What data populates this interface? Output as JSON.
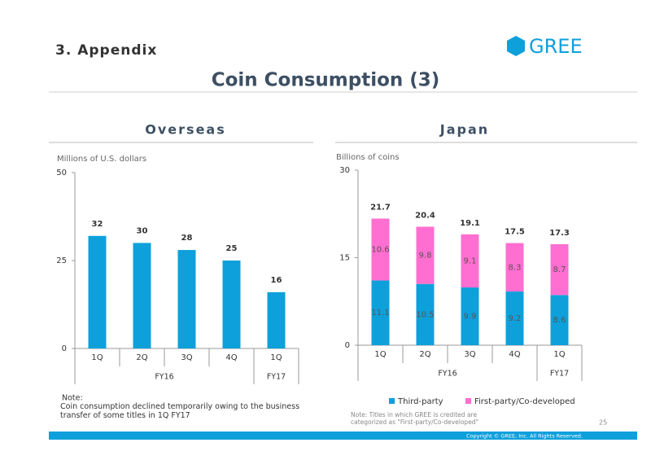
{
  "header": {
    "section": "3. Appendix",
    "logo": "GREE",
    "title": "Coin Consumption (3)"
  },
  "chart_data": [
    {
      "type": "bar",
      "title": "Overseas",
      "ylabel": "Millions of U.S. dollars",
      "color": "#0ea0db",
      "groups": [
        {
          "label": "FY16",
          "categories": [
            "1Q",
            "2Q",
            "3Q",
            "4Q"
          ]
        },
        {
          "label": "FY17",
          "categories": [
            "1Q"
          ]
        }
      ],
      "values": [
        32,
        30,
        28,
        25,
        16
      ],
      "ylim": [
        0,
        50
      ],
      "yticks": [
        0,
        25,
        50
      ],
      "note": {
        "heading": "Note:",
        "text": "Coin consumption declined temporarily owing to the business transfer of some titles in 1Q FY17"
      }
    },
    {
      "type": "stacked_bar",
      "title": "Japan",
      "ylabel": "Billions of coins",
      "groups": [
        {
          "label": "FY16",
          "categories": [
            "1Q",
            "2Q",
            "3Q",
            "4Q"
          ]
        },
        {
          "label": "FY17",
          "categories": [
            "1Q"
          ]
        }
      ],
      "series": [
        {
          "name": "Third-party",
          "color": "#0ea0db",
          "values": [
            11.1,
            10.5,
            9.9,
            9.2,
            8.6
          ]
        },
        {
          "name": "First-party/Co-developed",
          "color": "#ff6ed0",
          "values": [
            10.6,
            9.8,
            9.1,
            8.3,
            8.7
          ]
        }
      ],
      "totals": [
        21.7,
        20.4,
        19.1,
        17.5,
        17.3
      ],
      "ylim": [
        0,
        30
      ],
      "yticks": [
        0,
        15,
        30
      ],
      "legend": "bottom",
      "note": {
        "text": "Note: Titles in which GREE is credited are categorized as \"First-party/Co-developed\""
      }
    }
  ],
  "footer": {
    "page": "25",
    "copyright": "Copyright © GREE, Inc. All Rights Reserved."
  }
}
